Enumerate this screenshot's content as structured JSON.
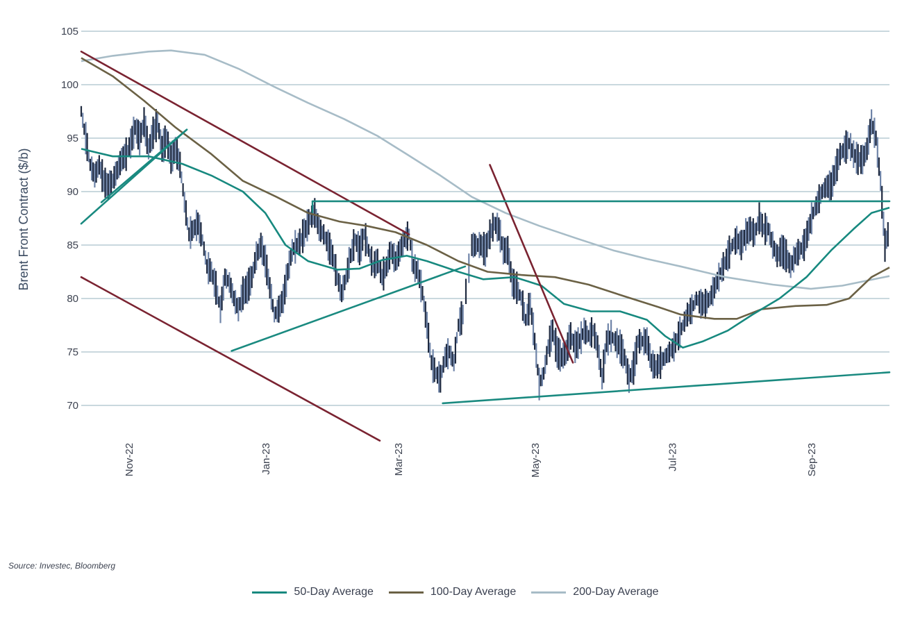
{
  "chart_data": {
    "type": "line",
    "ylabel": "Brent Front Contract ($/b)",
    "xlabel": "",
    "ylim": [
      67,
      107
    ],
    "yticks": [
      "105",
      "100",
      "95",
      "90",
      "85",
      "80",
      "75",
      "70"
    ],
    "x_tick_labels": [
      "Nov-22",
      "Jan-23",
      "Mar-23",
      "May-23",
      "Jul-23",
      "Sep-23"
    ],
    "x_tick_dates": [
      "2022-11-01",
      "2023-01-01",
      "2023-03-01",
      "2023-05-01",
      "2023-07-01",
      "2023-09-01"
    ],
    "x_range": [
      "2022-10-11",
      "2023-10-06"
    ],
    "grid": "horizontal",
    "legend_position": "bottom",
    "colors": {
      "price_dark": "#1f2a40",
      "price_light": "#6f84a8",
      "ma50": "#17897f",
      "ma100": "#6b6145",
      "ma200": "#a7bcc7",
      "trend_red": "#7a2331",
      "trend_teal": "#1a8a80",
      "grid": "#b7cbd3"
    },
    "price": {
      "name": "",
      "points": [
        [
          "2022-10-11",
          97.5
        ],
        [
          "2022-10-13",
          95
        ],
        [
          "2022-10-15",
          92.5
        ],
        [
          "2022-10-17",
          91.5
        ],
        [
          "2022-10-19",
          92.5
        ],
        [
          "2022-10-21",
          91
        ],
        [
          "2022-10-23",
          90.5
        ],
        [
          "2022-10-25",
          91
        ],
        [
          "2022-10-27",
          92
        ],
        [
          "2022-10-29",
          93
        ],
        [
          "2022-10-31",
          93.5
        ],
        [
          "2022-11-02",
          94.5
        ],
        [
          "2022-11-04",
          96
        ],
        [
          "2022-11-06",
          95
        ],
        [
          "2022-11-08",
          96.5
        ],
        [
          "2022-11-10",
          94
        ],
        [
          "2022-11-12",
          95.5
        ],
        [
          "2022-11-14",
          96.5
        ],
        [
          "2022-11-16",
          94
        ],
        [
          "2022-11-18",
          95
        ],
        [
          "2022-11-20",
          93
        ],
        [
          "2022-11-22",
          94
        ],
        [
          "2022-11-24",
          92.5
        ],
        [
          "2022-11-26",
          89
        ],
        [
          "2022-11-28",
          86
        ],
        [
          "2022-11-30",
          86.5
        ],
        [
          "2022-12-02",
          87
        ],
        [
          "2022-12-04",
          85.5
        ],
        [
          "2022-12-06",
          83
        ],
        [
          "2022-12-08",
          82.5
        ],
        [
          "2022-12-10",
          81
        ],
        [
          "2022-12-12",
          79
        ],
        [
          "2022-12-14",
          82
        ],
        [
          "2022-12-16",
          81.5
        ],
        [
          "2022-12-18",
          80
        ],
        [
          "2022-12-20",
          79
        ],
        [
          "2022-12-22",
          80.5
        ],
        [
          "2022-12-24",
          81
        ],
        [
          "2022-12-26",
          82
        ],
        [
          "2022-12-28",
          84
        ],
        [
          "2022-12-30",
          85
        ],
        [
          "2023-01-01",
          83.5
        ],
        [
          "2023-01-03",
          81
        ],
        [
          "2023-01-05",
          78.5
        ],
        [
          "2023-01-07",
          79
        ],
        [
          "2023-01-09",
          80
        ],
        [
          "2023-01-11",
          82.5
        ],
        [
          "2023-01-13",
          84.5
        ],
        [
          "2023-01-15",
          85
        ],
        [
          "2023-01-17",
          85.5
        ],
        [
          "2023-01-19",
          86.5
        ],
        [
          "2023-01-21",
          87.5
        ],
        [
          "2023-01-23",
          88
        ],
        [
          "2023-01-25",
          86.5
        ],
        [
          "2023-01-27",
          86
        ],
        [
          "2023-01-29",
          85
        ],
        [
          "2023-01-31",
          84
        ],
        [
          "2023-02-02",
          82
        ],
        [
          "2023-02-04",
          80.5
        ],
        [
          "2023-02-06",
          82
        ],
        [
          "2023-02-08",
          84
        ],
        [
          "2023-02-10",
          85.5
        ],
        [
          "2023-02-12",
          84.5
        ],
        [
          "2023-02-14",
          86
        ],
        [
          "2023-02-16",
          84.5
        ],
        [
          "2023-02-18",
          83
        ],
        [
          "2023-02-20",
          83.5
        ],
        [
          "2023-02-22",
          82
        ],
        [
          "2023-02-24",
          83
        ],
        [
          "2023-02-26",
          84.5
        ],
        [
          "2023-02-28",
          83.5
        ],
        [
          "2023-03-02",
          84.5
        ],
        [
          "2023-03-04",
          85.5
        ],
        [
          "2023-03-06",
          86
        ],
        [
          "2023-03-08",
          83
        ],
        [
          "2023-03-10",
          82.5
        ],
        [
          "2023-03-12",
          80.5
        ],
        [
          "2023-03-14",
          77.5
        ],
        [
          "2023-03-16",
          74
        ],
        [
          "2023-03-18",
          73
        ],
        [
          "2023-03-20",
          72.5
        ],
        [
          "2023-03-22",
          74.5
        ],
        [
          "2023-03-24",
          75
        ],
        [
          "2023-03-26",
          74
        ],
        [
          "2023-03-28",
          77.5
        ],
        [
          "2023-03-30",
          78.5
        ],
        [
          "2023-04-03",
          85
        ],
        [
          "2023-04-05",
          85
        ],
        [
          "2023-04-07",
          85
        ],
        [
          "2023-04-09",
          84.5
        ],
        [
          "2023-04-11",
          86
        ],
        [
          "2023-04-13",
          87
        ],
        [
          "2023-04-15",
          86.5
        ],
        [
          "2023-04-17",
          84.5
        ],
        [
          "2023-04-19",
          84.5
        ],
        [
          "2023-04-21",
          81.5
        ],
        [
          "2023-04-23",
          81
        ],
        [
          "2023-04-25",
          80
        ],
        [
          "2023-04-27",
          78
        ],
        [
          "2023-04-29",
          79.5
        ],
        [
          "2023-05-01",
          76
        ],
        [
          "2023-05-03",
          72
        ],
        [
          "2023-05-05",
          73
        ],
        [
          "2023-05-07",
          75.5
        ],
        [
          "2023-05-09",
          77
        ],
        [
          "2023-05-11",
          75
        ],
        [
          "2023-05-13",
          74.5
        ],
        [
          "2023-05-15",
          75
        ],
        [
          "2023-05-17",
          76.5
        ],
        [
          "2023-05-19",
          75.5
        ],
        [
          "2023-05-21",
          76
        ],
        [
          "2023-05-23",
          77
        ],
        [
          "2023-05-25",
          76.5
        ],
        [
          "2023-05-27",
          77
        ],
        [
          "2023-05-29",
          75.5
        ],
        [
          "2023-05-31",
          72.5
        ],
        [
          "2023-06-02",
          76
        ],
        [
          "2023-06-04",
          76.5
        ],
        [
          "2023-06-06",
          76
        ],
        [
          "2023-06-08",
          75.5
        ],
        [
          "2023-06-10",
          74.5
        ],
        [
          "2023-06-12",
          72.5
        ],
        [
          "2023-06-14",
          73.5
        ],
        [
          "2023-06-16",
          76
        ],
        [
          "2023-06-18",
          76
        ],
        [
          "2023-06-20",
          76
        ],
        [
          "2023-06-22",
          74
        ],
        [
          "2023-06-24",
          73.5
        ],
        [
          "2023-06-26",
          74
        ],
        [
          "2023-06-28",
          74.5
        ],
        [
          "2023-06-30",
          75
        ],
        [
          "2023-07-02",
          75.5
        ],
        [
          "2023-07-04",
          76.5
        ],
        [
          "2023-07-06",
          77.5
        ],
        [
          "2023-07-08",
          78.5
        ],
        [
          "2023-07-10",
          79
        ],
        [
          "2023-07-12",
          80
        ],
        [
          "2023-07-14",
          79.5
        ],
        [
          "2023-07-16",
          79.5
        ],
        [
          "2023-07-18",
          80
        ],
        [
          "2023-07-20",
          81
        ],
        [
          "2023-07-22",
          82
        ],
        [
          "2023-07-24",
          83
        ],
        [
          "2023-07-26",
          84
        ],
        [
          "2023-07-28",
          85
        ],
        [
          "2023-07-30",
          85.5
        ],
        [
          "2023-08-01",
          85
        ],
        [
          "2023-08-03",
          86
        ],
        [
          "2023-08-05",
          86.5
        ],
        [
          "2023-08-07",
          86
        ],
        [
          "2023-08-09",
          87.5
        ],
        [
          "2023-08-11",
          86.5
        ],
        [
          "2023-08-13",
          86.5
        ],
        [
          "2023-08-15",
          85
        ],
        [
          "2023-08-17",
          84
        ],
        [
          "2023-08-19",
          84.5
        ],
        [
          "2023-08-21",
          84
        ],
        [
          "2023-08-23",
          83
        ],
        [
          "2023-08-25",
          84
        ],
        [
          "2023-08-27",
          84.5
        ],
        [
          "2023-08-29",
          85
        ],
        [
          "2023-08-31",
          86.5
        ],
        [
          "2023-09-02",
          88
        ],
        [
          "2023-09-04",
          89
        ],
        [
          "2023-09-06",
          90
        ],
        [
          "2023-09-08",
          90.5
        ],
        [
          "2023-09-10",
          90.5
        ],
        [
          "2023-09-12",
          92
        ],
        [
          "2023-09-14",
          93.5
        ],
        [
          "2023-09-16",
          94
        ],
        [
          "2023-09-18",
          94.5
        ],
        [
          "2023-09-20",
          93.5
        ],
        [
          "2023-09-22",
          93
        ],
        [
          "2023-09-24",
          93
        ],
        [
          "2023-09-26",
          94
        ],
        [
          "2023-09-28",
          96.5
        ],
        [
          "2023-09-30",
          95
        ],
        [
          "2023-10-02",
          91
        ],
        [
          "2023-10-04",
          85
        ],
        [
          "2023-10-06",
          86.5
        ]
      ]
    },
    "series": [
      {
        "name": "50-Day Average",
        "points": [
          [
            "2022-10-11",
            94
          ],
          [
            "2022-10-25",
            93.3
          ],
          [
            "2022-11-10",
            93.3
          ],
          [
            "2022-11-25",
            92.6
          ],
          [
            "2022-12-08",
            91.5
          ],
          [
            "2022-12-22",
            90
          ],
          [
            "2023-01-01",
            88
          ],
          [
            "2023-01-10",
            85
          ],
          [
            "2023-01-20",
            83.5
          ],
          [
            "2023-02-02",
            82.7
          ],
          [
            "2023-02-12",
            82.8
          ],
          [
            "2023-02-22",
            83.6
          ],
          [
            "2023-03-05",
            84
          ],
          [
            "2023-03-14",
            83.5
          ],
          [
            "2023-03-28",
            82.5
          ],
          [
            "2023-04-08",
            81.8
          ],
          [
            "2023-04-22",
            82
          ],
          [
            "2023-05-04",
            81.2
          ],
          [
            "2023-05-14",
            79.5
          ],
          [
            "2023-05-26",
            78.8
          ],
          [
            "2023-06-08",
            78.8
          ],
          [
            "2023-06-20",
            78
          ],
          [
            "2023-06-28",
            76.5
          ],
          [
            "2023-07-06",
            75.4
          ],
          [
            "2023-07-15",
            76
          ],
          [
            "2023-07-26",
            77
          ],
          [
            "2023-08-06",
            78.5
          ],
          [
            "2023-08-18",
            80
          ],
          [
            "2023-08-30",
            82
          ],
          [
            "2023-09-10",
            84.5
          ],
          [
            "2023-09-20",
            86.5
          ],
          [
            "2023-09-28",
            88
          ],
          [
            "2023-10-06",
            88.5
          ]
        ]
      },
      {
        "name": "100-Day Average",
        "points": [
          [
            "2022-10-11",
            102.5
          ],
          [
            "2022-10-25",
            100.8
          ],
          [
            "2022-11-08",
            98.5
          ],
          [
            "2022-11-22",
            96
          ],
          [
            "2022-12-08",
            93.5
          ],
          [
            "2022-12-22",
            91
          ],
          [
            "2023-01-06",
            89.5
          ],
          [
            "2023-01-20",
            88
          ],
          [
            "2023-02-03",
            87.2
          ],
          [
            "2023-02-15",
            86.8
          ],
          [
            "2023-02-28",
            86.2
          ],
          [
            "2023-03-14",
            85
          ],
          [
            "2023-03-28",
            83.5
          ],
          [
            "2023-04-10",
            82.5
          ],
          [
            "2023-04-25",
            82.2
          ],
          [
            "2023-05-10",
            82
          ],
          [
            "2023-05-25",
            81.3
          ],
          [
            "2023-06-10",
            80.2
          ],
          [
            "2023-06-25",
            79.2
          ],
          [
            "2023-07-05",
            78.5
          ],
          [
            "2023-07-20",
            78.1
          ],
          [
            "2023-07-30",
            78.1
          ],
          [
            "2023-08-10",
            79
          ],
          [
            "2023-08-25",
            79.3
          ],
          [
            "2023-09-08",
            79.4
          ],
          [
            "2023-09-18",
            80
          ],
          [
            "2023-09-28",
            82
          ],
          [
            "2023-10-06",
            82.9
          ]
        ]
      },
      {
        "name": "200-Day Average",
        "points": [
          [
            "2022-10-11",
            102.2
          ],
          [
            "2022-10-25",
            102.7
          ],
          [
            "2022-11-10",
            103.1
          ],
          [
            "2022-11-20",
            103.2
          ],
          [
            "2022-12-05",
            102.8
          ],
          [
            "2022-12-20",
            101.5
          ],
          [
            "2023-01-05",
            99.8
          ],
          [
            "2023-01-20",
            98.3
          ],
          [
            "2023-02-05",
            96.8
          ],
          [
            "2023-02-20",
            95.2
          ],
          [
            "2023-03-05",
            93.5
          ],
          [
            "2023-03-20",
            91.5
          ],
          [
            "2023-04-03",
            89.5
          ],
          [
            "2023-04-18",
            88
          ],
          [
            "2023-05-03",
            86.8
          ],
          [
            "2023-05-20",
            85.6
          ],
          [
            "2023-06-05",
            84.5
          ],
          [
            "2023-06-20",
            83.7
          ],
          [
            "2023-07-05",
            83
          ],
          [
            "2023-07-25",
            82
          ],
          [
            "2023-08-15",
            81.3
          ],
          [
            "2023-09-01",
            80.9
          ],
          [
            "2023-09-15",
            81.2
          ],
          [
            "2023-10-06",
            82.1
          ]
        ]
      }
    ],
    "trendlines": [
      {
        "color": "trend_red",
        "points": [
          [
            "2022-10-11",
            103.1
          ],
          [
            "2023-03-06",
            86
          ]
        ]
      },
      {
        "color": "trend_red",
        "points": [
          [
            "2022-10-11",
            82
          ],
          [
            "2023-02-21",
            66.7
          ]
        ]
      },
      {
        "color": "trend_red",
        "points": [
          [
            "2023-04-11",
            92.5
          ],
          [
            "2023-05-18",
            74
          ]
        ]
      },
      {
        "color": "trend_teal",
        "points": [
          [
            "2022-10-11",
            87
          ]
        ]
      },
      {
        "color": "trend_teal",
        "points": [
          [
            "2022-10-11",
            87
          ],
          [
            "2022-11-27",
            95.8
          ]
        ]
      },
      {
        "color": "trend_teal",
        "points": [
          [
            "2022-10-20",
            89
          ],
          [
            "2022-11-27",
            95.8
          ]
        ]
      },
      {
        "color": "trend_teal",
        "points": [
          [
            "2022-12-17",
            75.1
          ],
          [
            "2023-03-31",
            83
          ]
        ]
      },
      {
        "color": "trend_teal",
        "points": [
          [
            "2023-01-22",
            89.1
          ],
          [
            "2023-10-06",
            89.1
          ]
        ]
      },
      {
        "color": "trend_teal",
        "points": [
          [
            "2023-03-21",
            70.2
          ],
          [
            "2023-10-06",
            73.1
          ]
        ]
      }
    ]
  },
  "source": "Source: Investec, Bloomberg",
  "legend": [
    {
      "label": "50-Day Average",
      "color": "#17897f"
    },
    {
      "label": "100-Day Average",
      "color": "#6b6145"
    },
    {
      "label": "200-Day Average",
      "color": "#a7bcc7"
    }
  ]
}
